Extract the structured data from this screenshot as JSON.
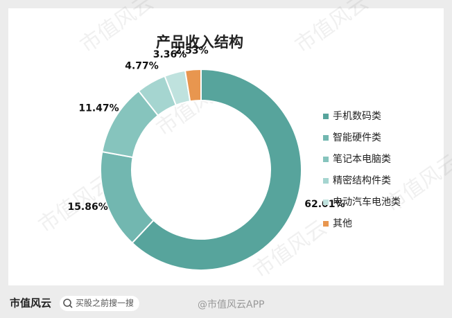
{
  "chart_data": {
    "type": "pie",
    "title": "产品收入结构",
    "categories": [
      "手机数码类",
      "智能硬件类",
      "笔记本电脑类",
      "精密结构件类",
      "电动汽车电池类",
      "其他"
    ],
    "values": [
      62.01,
      15.86,
      11.47,
      4.77,
      3.36,
      2.53
    ],
    "value_labels": [
      "62.01%",
      "15.86%",
      "11.47%",
      "4.77%",
      "3.36%",
      "2.53%"
    ],
    "colors": [
      "#57a49c",
      "#72b7b0",
      "#86c4bd",
      "#a5d5d0",
      "#bfe2de",
      "#e8964f"
    ],
    "legend": "right"
  },
  "footer": {
    "brand": "市值风云",
    "search": "买股之前搜一搜",
    "weibo": "@市值风云APP"
  },
  "watermark": "市值风云"
}
